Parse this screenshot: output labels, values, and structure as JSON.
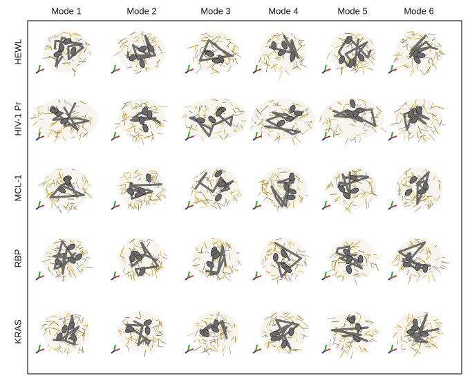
{
  "columns": [
    "Mode 1",
    "Mode 2",
    "Mode 3",
    "Mode 4",
    "Mode 5",
    "Mode 6"
  ],
  "rows": [
    "HEWL",
    "HIV-1 Pr",
    "MCL-1",
    "RBP",
    "KRAS"
  ]
}
